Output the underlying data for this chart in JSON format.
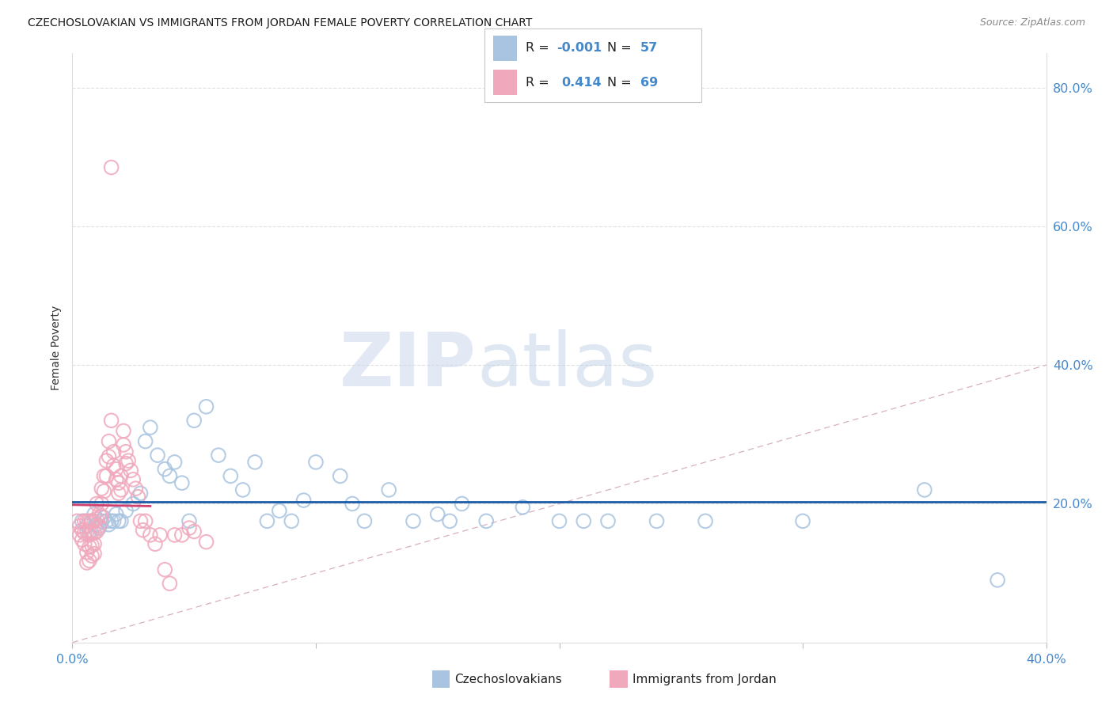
{
  "title": "CZECHOSLOVAKIAN VS IMMIGRANTS FROM JORDAN FEMALE POVERTY CORRELATION CHART",
  "source": "Source: ZipAtlas.com",
  "ylabel": "Female Poverty",
  "xlim": [
    0.0,
    0.4
  ],
  "ylim": [
    0.0,
    0.85
  ],
  "blue_color": "#a8c4e0",
  "pink_color": "#f0a8bc",
  "blue_line_color": "#1a5ca8",
  "pink_line_color": "#d04070",
  "diag_color": "#d8b0c0",
  "grid_color": "#e0e0e0",
  "axis_color": "#4488cc",
  "text_color": "#222222",
  "legend_R1": "-0.001",
  "legend_N1": "57",
  "legend_R2": "0.414",
  "legend_N2": "69",
  "label1": "Czechoslovakians",
  "label2": "Immigrants from Jordan",
  "watermark_zip": "ZIP",
  "watermark_atlas": "atlas",
  "title_fontsize": 10,
  "tick_fontsize": 11.5,
  "ylabel_fontsize": 10
}
